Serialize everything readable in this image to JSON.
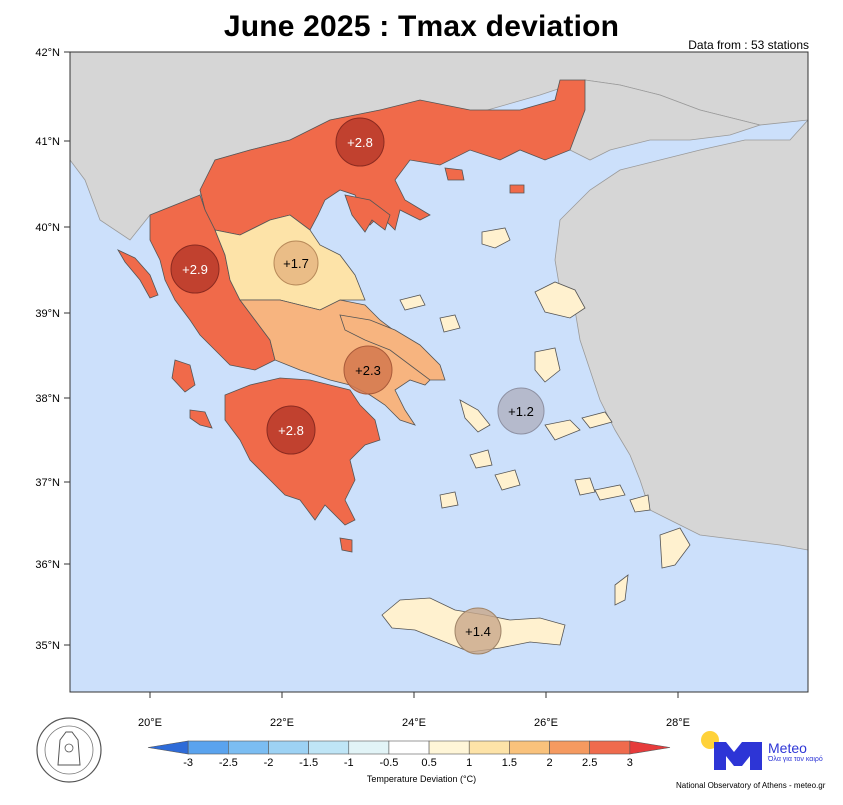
{
  "title": "June 2025 : Tmax deviation",
  "stations_note": "Data from : 53 stations",
  "lat_labels": [
    "42°N",
    "41°N",
    "40°N",
    "39°N",
    "38°N",
    "37°N",
    "36°N",
    "35°N"
  ],
  "lon_labels": [
    "20°E",
    "22°E",
    "24°E",
    "26°E",
    "28°E"
  ],
  "regions": [
    {
      "id": "macedonia-thrace",
      "value": "+2.8",
      "lon": 23.1,
      "lat": 41.0
    },
    {
      "id": "epirus",
      "value": "+2.9",
      "lon": 20.7,
      "lat": 39.55
    },
    {
      "id": "thessaly",
      "value": "+1.7",
      "lon": 22.2,
      "lat": 39.6
    },
    {
      "id": "central-greece",
      "value": "+2.3",
      "lon": 23.25,
      "lat": 38.35
    },
    {
      "id": "peloponnese",
      "value": "+2.8",
      "lon": 22.1,
      "lat": 37.6
    },
    {
      "id": "aegean-islands",
      "value": "+1.2",
      "lon": 25.65,
      "lat": 37.85
    },
    {
      "id": "crete",
      "value": "+1.4",
      "lon": 24.95,
      "lat": 35.2
    }
  ],
  "colorbar": {
    "ticks": [
      "-3",
      "-2.5",
      "-2",
      "-1.5",
      "-1",
      "-0.5",
      "0.5",
      "1",
      "1.5",
      "2",
      "2.5",
      "3"
    ],
    "colors": [
      "#2e6bd8",
      "#5aa3ee",
      "#7bbdf2",
      "#9dd2f4",
      "#bfe5f6",
      "#e2f4f7",
      "#ffffff",
      "#fff6d8",
      "#fde3a8",
      "#f9c27c",
      "#f59a60",
      "#ef6b4d",
      "#e63b3b"
    ],
    "title": "Temperature Deviation (°C)"
  },
  "logo": {
    "name": "Meteo",
    "tagline": "Όλα για τον καιρό"
  },
  "credit": "National Observatory of Athens - meteo.gr",
  "colors": {
    "sea": "#cce0fb",
    "land_other": "#d6d6d6",
    "high": "#f06a4a",
    "mid": "#f7b47f",
    "low": "#fde3a8",
    "lower": "#fff1cf",
    "circle_dark": "#b83a2a",
    "circle_light": "#c9a88a"
  }
}
